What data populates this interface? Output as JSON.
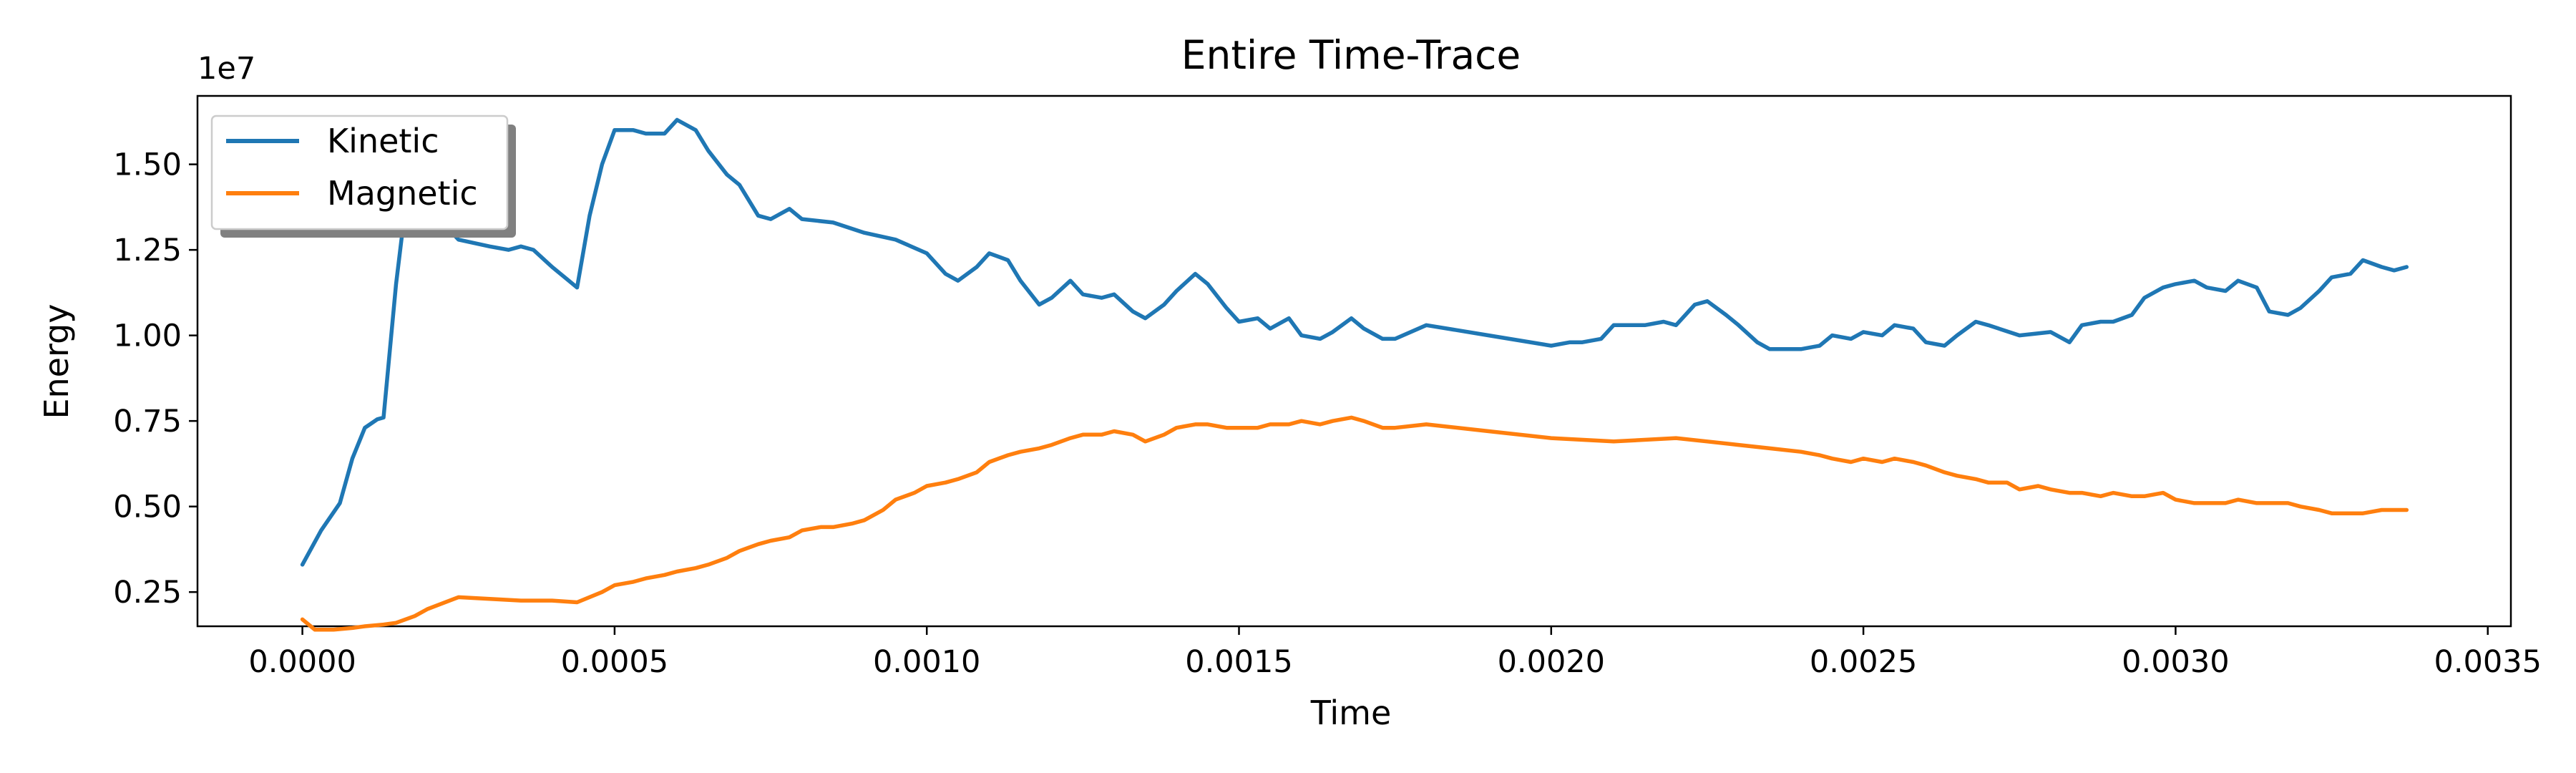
{
  "chart_data": {
    "type": "line",
    "title": "Entire Time-Trace",
    "xlabel": "Time",
    "ylabel": "Energy",
    "y_offset_label": "1e7",
    "xlim": [
      -0.000168,
      0.003537
    ],
    "ylim": [
      0.15,
      1.7
    ],
    "x_ticks": [
      0.0,
      0.0005,
      0.001,
      0.0015,
      0.002,
      0.0025,
      0.003,
      0.0035
    ],
    "x_tick_labels": [
      "0.0000",
      "0.0005",
      "0.0010",
      "0.0015",
      "0.0020",
      "0.0025",
      "0.0030",
      "0.0035"
    ],
    "y_ticks": [
      0.25,
      0.5,
      0.75,
      1.0,
      1.25,
      1.5
    ],
    "y_tick_labels": [
      "0.25",
      "0.50",
      "0.75",
      "1.00",
      "1.25",
      "1.50"
    ],
    "grid": false,
    "legend_position": "upper left",
    "series": [
      {
        "name": "Kinetic",
        "color": "#1f77b4",
        "x": [
          0.0,
          3e-05,
          6e-05,
          8e-05,
          0.0001,
          0.00012,
          0.00013,
          0.00015,
          0.00016,
          0.00017,
          0.0002,
          0.00025,
          0.0003,
          0.00033,
          0.00035,
          0.00037,
          0.0004,
          0.00042,
          0.00044,
          0.00046,
          0.00048,
          0.0005,
          0.00053,
          0.00055,
          0.00058,
          0.0006,
          0.00063,
          0.00065,
          0.00068,
          0.0007,
          0.00073,
          0.00075,
          0.00078,
          0.0008,
          0.00085,
          0.0009,
          0.00095,
          0.001,
          0.00103,
          0.00105,
          0.00108,
          0.0011,
          0.00113,
          0.00115,
          0.00118,
          0.0012,
          0.00123,
          0.00125,
          0.00128,
          0.0013,
          0.00133,
          0.00135,
          0.00138,
          0.0014,
          0.00143,
          0.00145,
          0.00148,
          0.0015,
          0.00153,
          0.00155,
          0.00158,
          0.0016,
          0.00163,
          0.00165,
          0.00168,
          0.0017,
          0.00173,
          0.00175,
          0.0018,
          0.0019,
          0.002,
          0.00203,
          0.00205,
          0.00208,
          0.0021,
          0.00213,
          0.00215,
          0.00218,
          0.0022,
          0.00223,
          0.00225,
          0.00228,
          0.0023,
          0.00233,
          0.00235,
          0.00238,
          0.0024,
          0.00243,
          0.00245,
          0.00248,
          0.0025,
          0.00253,
          0.00255,
          0.00258,
          0.0026,
          0.00263,
          0.00265,
          0.00268,
          0.0027,
          0.00275,
          0.0028,
          0.00283,
          0.00285,
          0.00288,
          0.0029,
          0.00293,
          0.00295,
          0.00298,
          0.003,
          0.00303,
          0.00305,
          0.00308,
          0.0031,
          0.00313,
          0.00315,
          0.00318,
          0.0032,
          0.00323,
          0.00325,
          0.00328,
          0.0033,
          0.00333,
          0.00335,
          0.00337
        ],
        "y": [
          0.33,
          0.43,
          0.51,
          0.64,
          0.73,
          0.755,
          0.76,
          1.15,
          1.3,
          1.35,
          1.38,
          1.28,
          1.26,
          1.25,
          1.26,
          1.25,
          1.2,
          1.17,
          1.14,
          1.35,
          1.5,
          1.6,
          1.6,
          1.59,
          1.59,
          1.63,
          1.6,
          1.54,
          1.47,
          1.44,
          1.35,
          1.34,
          1.37,
          1.34,
          1.33,
          1.3,
          1.28,
          1.24,
          1.18,
          1.16,
          1.2,
          1.24,
          1.22,
          1.16,
          1.09,
          1.11,
          1.16,
          1.12,
          1.11,
          1.12,
          1.07,
          1.05,
          1.09,
          1.13,
          1.18,
          1.15,
          1.08,
          1.04,
          1.05,
          1.02,
          1.05,
          1.0,
          0.99,
          1.01,
          1.05,
          1.02,
          0.99,
          0.99,
          1.03,
          1.0,
          0.97,
          0.98,
          0.98,
          0.99,
          1.03,
          1.03,
          1.03,
          1.04,
          1.03,
          1.09,
          1.1,
          1.06,
          1.03,
          0.98,
          0.96,
          0.96,
          0.96,
          0.97,
          1.0,
          0.99,
          1.01,
          1.0,
          1.03,
          1.02,
          0.98,
          0.97,
          1.0,
          1.04,
          1.03,
          1.0,
          1.01,
          0.98,
          1.03,
          1.04,
          1.04,
          1.06,
          1.11,
          1.14,
          1.15,
          1.16,
          1.14,
          1.13,
          1.16,
          1.14,
          1.07,
          1.06,
          1.08,
          1.13,
          1.17,
          1.18,
          1.22,
          1.2,
          1.19,
          1.2
        ]
      },
      {
        "name": "Magnetic",
        "color": "#ff7f0e",
        "x": [
          0.0,
          2e-05,
          5e-05,
          8e-05,
          0.0001,
          0.00013,
          0.00015,
          0.00018,
          0.0002,
          0.00025,
          0.0003,
          0.00035,
          0.0004,
          0.00044,
          0.00048,
          0.0005,
          0.00053,
          0.00055,
          0.00058,
          0.0006,
          0.00063,
          0.00065,
          0.00068,
          0.0007,
          0.00073,
          0.00075,
          0.00078,
          0.0008,
          0.00083,
          0.00085,
          0.00088,
          0.0009,
          0.00093,
          0.00095,
          0.00098,
          0.001,
          0.00103,
          0.00105,
          0.00108,
          0.0011,
          0.00113,
          0.00115,
          0.00118,
          0.0012,
          0.00123,
          0.00125,
          0.00128,
          0.0013,
          0.00133,
          0.00135,
          0.00138,
          0.0014,
          0.00143,
          0.00145,
          0.00148,
          0.0015,
          0.00153,
          0.00155,
          0.00158,
          0.0016,
          0.00163,
          0.00165,
          0.00168,
          0.0017,
          0.00173,
          0.00175,
          0.0018,
          0.0019,
          0.002,
          0.0021,
          0.0022,
          0.00225,
          0.0023,
          0.00235,
          0.0024,
          0.00243,
          0.00245,
          0.00248,
          0.0025,
          0.00253,
          0.00255,
          0.00258,
          0.0026,
          0.00263,
          0.00265,
          0.00268,
          0.0027,
          0.00273,
          0.00275,
          0.00278,
          0.0028,
          0.00283,
          0.00285,
          0.00288,
          0.0029,
          0.00293,
          0.00295,
          0.00298,
          0.003,
          0.00303,
          0.00305,
          0.00308,
          0.0031,
          0.00313,
          0.00315,
          0.00318,
          0.0032,
          0.00323,
          0.00325,
          0.00328,
          0.0033,
          0.00333,
          0.00335,
          0.00337
        ],
        "y": [
          0.17,
          0.14,
          0.14,
          0.145,
          0.15,
          0.155,
          0.16,
          0.18,
          0.2,
          0.235,
          0.23,
          0.225,
          0.225,
          0.22,
          0.25,
          0.27,
          0.28,
          0.29,
          0.3,
          0.31,
          0.32,
          0.33,
          0.35,
          0.37,
          0.39,
          0.4,
          0.41,
          0.43,
          0.44,
          0.44,
          0.45,
          0.46,
          0.49,
          0.52,
          0.54,
          0.56,
          0.57,
          0.58,
          0.6,
          0.63,
          0.65,
          0.66,
          0.67,
          0.68,
          0.7,
          0.71,
          0.71,
          0.72,
          0.71,
          0.69,
          0.71,
          0.73,
          0.74,
          0.74,
          0.73,
          0.73,
          0.73,
          0.74,
          0.74,
          0.75,
          0.74,
          0.75,
          0.76,
          0.75,
          0.73,
          0.73,
          0.74,
          0.72,
          0.7,
          0.69,
          0.7,
          0.69,
          0.68,
          0.67,
          0.66,
          0.65,
          0.64,
          0.63,
          0.64,
          0.63,
          0.64,
          0.63,
          0.62,
          0.6,
          0.59,
          0.58,
          0.57,
          0.57,
          0.55,
          0.56,
          0.55,
          0.54,
          0.54,
          0.53,
          0.54,
          0.53,
          0.53,
          0.54,
          0.52,
          0.51,
          0.51,
          0.51,
          0.52,
          0.51,
          0.51,
          0.51,
          0.5,
          0.49,
          0.48,
          0.48,
          0.48,
          0.49,
          0.49,
          0.49
        ]
      }
    ]
  }
}
